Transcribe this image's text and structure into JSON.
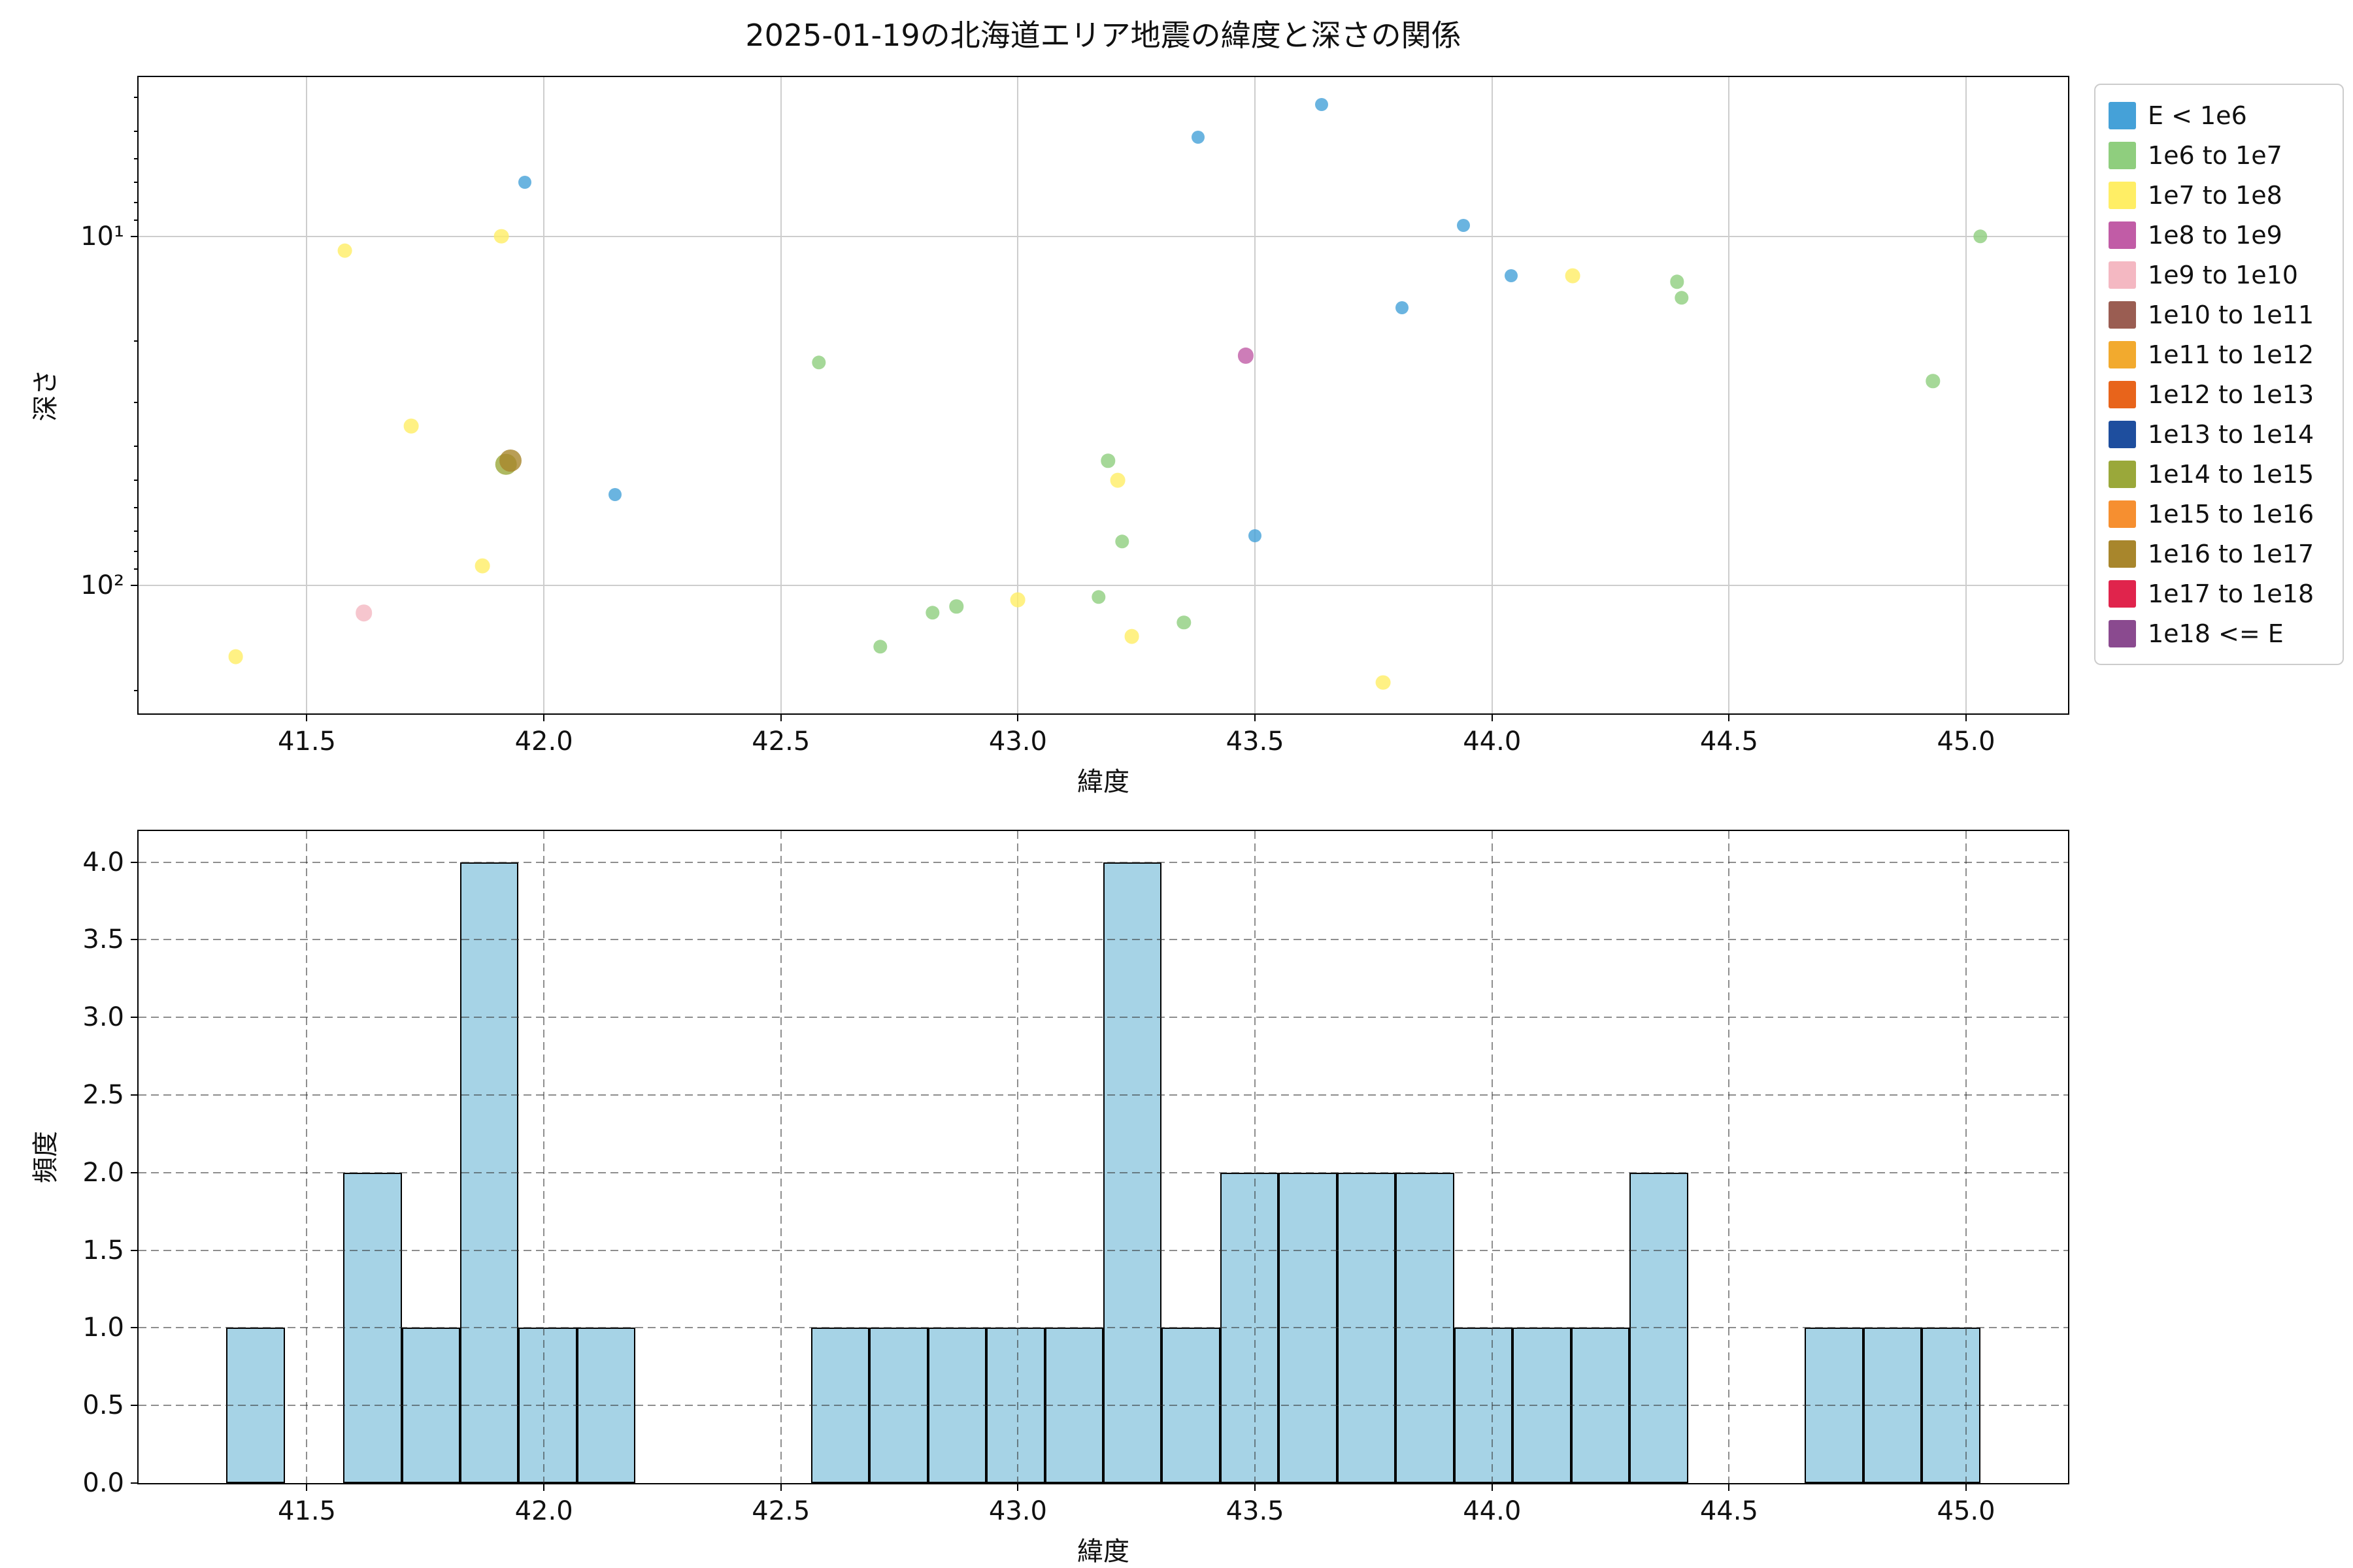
{
  "figure": {
    "title": "2025-01-19の北海道エリア地震の緯度と深さの関係"
  },
  "legend": {
    "entries": [
      {
        "label": "E < 1e6",
        "color": "#45a1d8"
      },
      {
        "label": "1e6 to 1e7",
        "color": "#8fce7e"
      },
      {
        "label": "1e7 to 1e8",
        "color": "#ffee65"
      },
      {
        "label": "1e8 to 1e9",
        "color": "#c15ca6"
      },
      {
        "label": "1e9 to 1e10",
        "color": "#f4b8c2"
      },
      {
        "label": "1e10 to 1e11",
        "color": "#9a5d52"
      },
      {
        "label": "1e11 to 1e12",
        "color": "#f2aa2e"
      },
      {
        "label": "1e12 to 1e13",
        "color": "#e8641b"
      },
      {
        "label": "1e13 to 1e14",
        "color": "#1e4e9e"
      },
      {
        "label": "1e14 to 1e15",
        "color": "#9aa83a"
      },
      {
        "label": "1e15 to 1e16",
        "color": "#f68f30"
      },
      {
        "label": "1e16 to 1e17",
        "color": "#a8862c"
      },
      {
        "label": "1e17 to 1e18",
        "color": "#e0244c"
      },
      {
        "label": "1e18 <= E",
        "color": "#8a4a8f"
      }
    ]
  },
  "chart_data": [
    {
      "type": "scatter",
      "title": "2025-01-19の北海道エリア地震の緯度と深さの関係",
      "xlabel": "緯度",
      "ylabel": "深さ",
      "x_ticks": [
        41.5,
        42.0,
        42.5,
        43.0,
        43.5,
        44.0,
        44.5,
        45.0
      ],
      "y_ticks": [
        {
          "value": 10,
          "label": "10¹"
        },
        {
          "value": 100,
          "label": "10²"
        }
      ],
      "y_minor_ticks": [
        4,
        5,
        6,
        7,
        8,
        9,
        20,
        30,
        40,
        50,
        60,
        70,
        80,
        90,
        200
      ],
      "xlim": [
        41.145,
        45.215
      ],
      "ylim": [
        3.5,
        233
      ],
      "y_scale": "log",
      "y_inverted": true,
      "grid": "solid",
      "legend_position": "outside upper right",
      "points": [
        {
          "lat": 41.35,
          "depth": 160,
          "bin": "1e7 to 1e8"
        },
        {
          "lat": 41.58,
          "depth": 11,
          "bin": "1e7 to 1e8"
        },
        {
          "lat": 41.62,
          "depth": 120,
          "bin": "1e9 to 1e10"
        },
        {
          "lat": 41.72,
          "depth": 35,
          "bin": "1e7 to 1e8"
        },
        {
          "lat": 41.87,
          "depth": 88,
          "bin": "1e7 to 1e8"
        },
        {
          "lat": 41.91,
          "depth": 10,
          "bin": "1e7 to 1e8"
        },
        {
          "lat": 41.92,
          "depth": 45,
          "bin": "1e14 to 1e15"
        },
        {
          "lat": 41.93,
          "depth": 44,
          "bin": "1e16 to 1e17"
        },
        {
          "lat": 41.96,
          "depth": 7,
          "bin": "E < 1e6"
        },
        {
          "lat": 42.15,
          "depth": 55,
          "bin": "E < 1e6"
        },
        {
          "lat": 42.58,
          "depth": 23,
          "bin": "1e6 to 1e7"
        },
        {
          "lat": 42.71,
          "depth": 150,
          "bin": "1e6 to 1e7"
        },
        {
          "lat": 42.82,
          "depth": 120,
          "bin": "1e6 to 1e7"
        },
        {
          "lat": 42.87,
          "depth": 115,
          "bin": "1e6 to 1e7"
        },
        {
          "lat": 43.0,
          "depth": 110,
          "bin": "1e7 to 1e8"
        },
        {
          "lat": 43.17,
          "depth": 108,
          "bin": "1e6 to 1e7"
        },
        {
          "lat": 43.19,
          "depth": 44,
          "bin": "1e6 to 1e7"
        },
        {
          "lat": 43.21,
          "depth": 50,
          "bin": "1e7 to 1e8"
        },
        {
          "lat": 43.22,
          "depth": 75,
          "bin": "1e6 to 1e7"
        },
        {
          "lat": 43.24,
          "depth": 140,
          "bin": "1e7 to 1e8"
        },
        {
          "lat": 43.35,
          "depth": 128,
          "bin": "1e6 to 1e7"
        },
        {
          "lat": 43.38,
          "depth": 5.2,
          "bin": "E < 1e6"
        },
        {
          "lat": 43.48,
          "depth": 22,
          "bin": "1e8 to 1e9"
        },
        {
          "lat": 43.5,
          "depth": 72,
          "bin": "E < 1e6"
        },
        {
          "lat": 43.64,
          "depth": 4.2,
          "bin": "E < 1e6"
        },
        {
          "lat": 43.77,
          "depth": 190,
          "bin": "1e7 to 1e8"
        },
        {
          "lat": 43.81,
          "depth": 16,
          "bin": "E < 1e6"
        },
        {
          "lat": 43.94,
          "depth": 9.3,
          "bin": "E < 1e6"
        },
        {
          "lat": 44.04,
          "depth": 13,
          "bin": "E < 1e6"
        },
        {
          "lat": 44.17,
          "depth": 13,
          "bin": "1e7 to 1e8"
        },
        {
          "lat": 44.39,
          "depth": 13.5,
          "bin": "1e6 to 1e7"
        },
        {
          "lat": 44.4,
          "depth": 15,
          "bin": "1e6 to 1e7"
        },
        {
          "lat": 44.93,
          "depth": 26,
          "bin": "1e6 to 1e7"
        },
        {
          "lat": 45.03,
          "depth": 10,
          "bin": "1e6 to 1e7"
        }
      ]
    },
    {
      "type": "bar",
      "xlabel": "緯度",
      "ylabel": "頻度",
      "x_ticks": [
        41.5,
        42.0,
        42.5,
        43.0,
        43.5,
        44.0,
        44.5,
        45.0
      ],
      "y_ticks": [
        0.0,
        0.5,
        1.0,
        1.5,
        2.0,
        2.5,
        3.0,
        3.5,
        4.0
      ],
      "xlim": [
        41.145,
        45.215
      ],
      "ylim": [
        0,
        4.2
      ],
      "grid": "dashed",
      "bar_color": "#a6d3e6",
      "bar_edge_color": "#000000",
      "bin_start": 41.33,
      "bin_width": 0.123333,
      "counts": [
        1,
        0,
        2,
        1,
        4,
        1,
        1,
        0,
        0,
        0,
        1,
        1,
        1,
        1,
        1,
        4,
        1,
        2,
        2,
        2,
        2,
        1,
        1,
        1,
        2,
        0,
        0,
        1,
        1,
        1
      ]
    }
  ]
}
